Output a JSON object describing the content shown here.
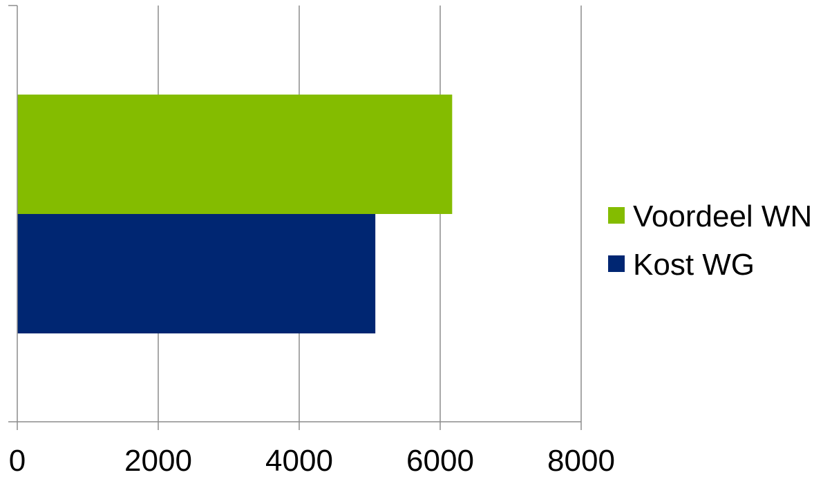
{
  "chart_data": {
    "type": "bar",
    "orientation": "horizontal",
    "title": "",
    "xlabel": "",
    "ylabel": "",
    "xlim": [
      0,
      8000
    ],
    "xticks": [
      "0",
      "2000",
      "4000",
      "6000",
      "8000"
    ],
    "grid": true,
    "legend_position": "right",
    "categories": [
      ""
    ],
    "series": [
      {
        "name": "Voordeel WN",
        "values": [
          6170
        ],
        "color": "#84BC00"
      },
      {
        "name": "Kost WG",
        "values": [
          5080
        ],
        "color": "#002672"
      }
    ]
  }
}
